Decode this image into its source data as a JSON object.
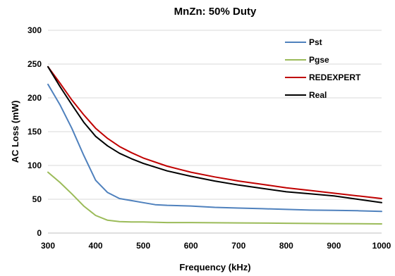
{
  "chart_data": {
    "type": "line",
    "title": "MnZn: 50% Duty",
    "xlabel": "Frequency (kHz)",
    "ylabel": "AC Loss (mW)",
    "xlim": [
      300,
      1000
    ],
    "ylim": [
      0,
      300
    ],
    "x_ticks": [
      300,
      400,
      500,
      600,
      700,
      800,
      900,
      1000
    ],
    "y_ticks": [
      0,
      50,
      100,
      150,
      200,
      250,
      300
    ],
    "grid": "horizontal",
    "legend_position": "top-right",
    "series": [
      {
        "name": "Pst",
        "color": "#4F81BD",
        "points": [
          [
            300,
            220
          ],
          [
            325,
            190
          ],
          [
            350,
            155
          ],
          [
            375,
            115
          ],
          [
            400,
            78
          ],
          [
            425,
            60
          ],
          [
            450,
            51
          ],
          [
            475,
            48
          ],
          [
            500,
            45
          ],
          [
            525,
            42
          ],
          [
            550,
            41
          ],
          [
            600,
            40
          ],
          [
            650,
            38
          ],
          [
            700,
            37
          ],
          [
            750,
            36
          ],
          [
            800,
            35
          ],
          [
            850,
            34
          ],
          [
            900,
            33.5
          ],
          [
            950,
            33
          ],
          [
            1000,
            32
          ]
        ]
      },
      {
        "name": "Pgse",
        "color": "#9BBB59",
        "points": [
          [
            300,
            90
          ],
          [
            325,
            75
          ],
          [
            350,
            58
          ],
          [
            375,
            40
          ],
          [
            400,
            26
          ],
          [
            425,
            19
          ],
          [
            450,
            17
          ],
          [
            475,
            16.5
          ],
          [
            500,
            16.5
          ],
          [
            550,
            15.5
          ],
          [
            600,
            15.5
          ],
          [
            700,
            15
          ],
          [
            800,
            14.5
          ],
          [
            900,
            14
          ],
          [
            1000,
            13.5
          ]
        ]
      },
      {
        "name": "REDEXPERT",
        "color": "#C00000",
        "points": [
          [
            300,
            246
          ],
          [
            325,
            222
          ],
          [
            350,
            197
          ],
          [
            375,
            175
          ],
          [
            400,
            155
          ],
          [
            425,
            140
          ],
          [
            450,
            128
          ],
          [
            475,
            119
          ],
          [
            500,
            111
          ],
          [
            550,
            99
          ],
          [
            600,
            90
          ],
          [
            650,
            83
          ],
          [
            700,
            77
          ],
          [
            750,
            72
          ],
          [
            800,
            67
          ],
          [
            850,
            63
          ],
          [
            900,
            59
          ],
          [
            950,
            55
          ],
          [
            1000,
            51
          ]
        ]
      },
      {
        "name": "Real",
        "color": "#000000",
        "points": [
          [
            300,
            246
          ],
          [
            325,
            217
          ],
          [
            350,
            190
          ],
          [
            375,
            164
          ],
          [
            400,
            143
          ],
          [
            425,
            129
          ],
          [
            450,
            118
          ],
          [
            475,
            110
          ],
          [
            500,
            103
          ],
          [
            550,
            92
          ],
          [
            600,
            84
          ],
          [
            650,
            77
          ],
          [
            700,
            71
          ],
          [
            750,
            66
          ],
          [
            800,
            61
          ],
          [
            850,
            58
          ],
          [
            900,
            55
          ],
          [
            950,
            50
          ],
          [
            1000,
            45
          ]
        ]
      }
    ]
  }
}
